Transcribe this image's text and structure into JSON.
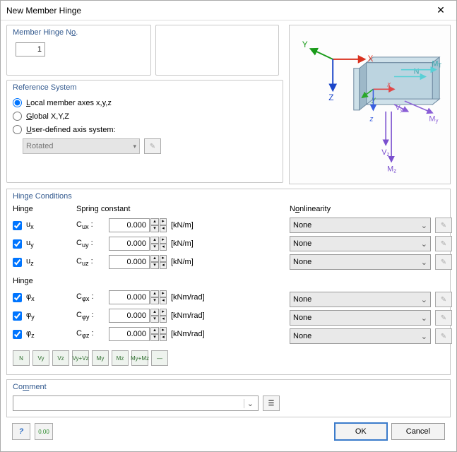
{
  "window": {
    "title": "New Member Hinge"
  },
  "memberHinge": {
    "group_title": "Member Hinge No.",
    "value": "1"
  },
  "reference": {
    "group_title": "Reference System",
    "opt_local": "Local member axes x,y,z",
    "opt_global": "Global X,Y,Z",
    "opt_user": "User-defined axis system:",
    "selected": "local",
    "rotated_value": "Rotated"
  },
  "diagram": {
    "labels": {
      "X": "X",
      "Y": "Y",
      "Z": "Z",
      "x": "x",
      "y": "y",
      "z": "z",
      "N": "N",
      "MT": "M_T",
      "My": "M_y",
      "Vy": "V_y",
      "Vz": "V_z",
      "Mz": "M_z"
    },
    "colors": {
      "X_axis": "#d9321f",
      "Y_axis": "#1a9b1a",
      "Z_axis": "#1c46c9",
      "x_local": "#e04848",
      "y_local": "#2aa82a",
      "z_local": "#3a5fe0",
      "N_arrow": "#59d0d6",
      "My_arrow": "#8a5ed6",
      "Vz_arrow": "#7a4fce",
      "Mz_arrow": "#7a4fce",
      "beam_fill": "#cfe1ea",
      "beam_edge": "#6f8aa0"
    }
  },
  "hingeConditions": {
    "group_title": "Hinge Conditions",
    "h_hinge": "Hinge",
    "h_spring": "Spring constant",
    "h_nonlin": "Nonlinearity",
    "unit_lin": "[kN/m]",
    "unit_rot": "[kNm/rad]",
    "rows_lin": [
      {
        "name": "ux",
        "checked": true,
        "label": "u",
        "sub": "x",
        "c_label": "C",
        "c_sub": "ux",
        "value": "0.000",
        "nonlin": "None"
      },
      {
        "name": "uy",
        "checked": true,
        "label": "u",
        "sub": "y",
        "c_label": "C",
        "c_sub": "uy",
        "value": "0.000",
        "nonlin": "None"
      },
      {
        "name": "uz",
        "checked": true,
        "label": "u",
        "sub": "z",
        "c_label": "C",
        "c_sub": "uz",
        "value": "0.000",
        "nonlin": "None"
      }
    ],
    "rows_rot": [
      {
        "name": "phix",
        "checked": true,
        "label": "φ",
        "sub": "x",
        "c_label": "C",
        "c_sub": "φx",
        "value": "0.000",
        "nonlin": "None"
      },
      {
        "name": "phiy",
        "checked": true,
        "label": "φ",
        "sub": "y",
        "c_label": "C",
        "c_sub": "φy",
        "value": "0.000",
        "nonlin": "None"
      },
      {
        "name": "phiz",
        "checked": true,
        "label": "φ",
        "sub": "z",
        "c_label": "C",
        "c_sub": "φz",
        "value": "0.000",
        "nonlin": "None"
      }
    ],
    "toolbar": [
      "N",
      "Vy",
      "Vz",
      "Vy+Vz",
      "My",
      "Mz",
      "My+Mz",
      "—"
    ]
  },
  "comment": {
    "group_title": "Comment",
    "value": ""
  },
  "footer": {
    "ok": "OK",
    "cancel": "Cancel"
  }
}
